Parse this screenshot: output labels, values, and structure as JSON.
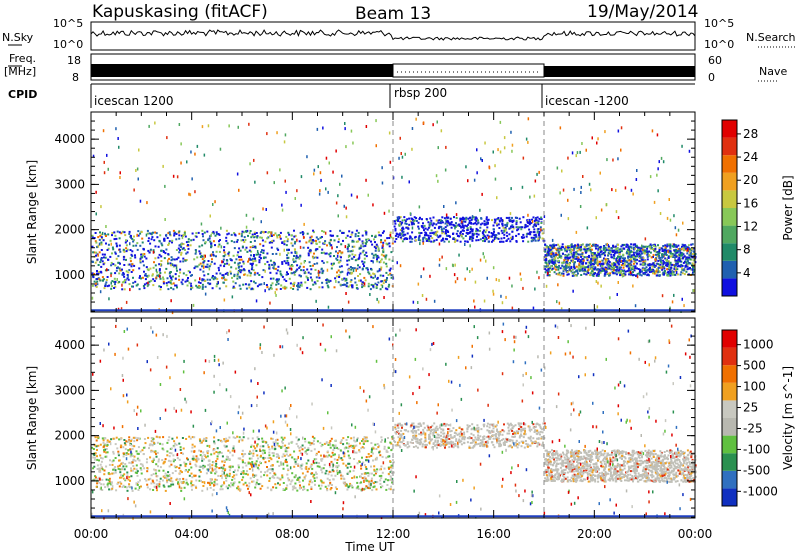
{
  "header": {
    "station": "Kapuskasing (fitACF)",
    "beam": "Beam 13",
    "date": "19/May/2014"
  },
  "strip_labels": {
    "nsky": "N.Sky",
    "freq": "Freq.",
    "freq_unit": "[MHz]",
    "cpid": "CPID",
    "nsearch": "N.Search",
    "nave": "Nave",
    "nsky_ticks": [
      "10^5",
      "10^0"
    ],
    "freq_ticks": [
      "18",
      "8"
    ],
    "nave_ticks": [
      "60",
      "0"
    ]
  },
  "cpid_segments": [
    {
      "name": "icescan 1200",
      "start_h": 0,
      "end_h": 12
    },
    {
      "name": "rbsp 200",
      "start_h": 12,
      "end_h": 18
    },
    {
      "name": "icescan -1200",
      "start_h": 18,
      "end_h": 24
    }
  ],
  "chart_data": [
    {
      "type": "heatmap",
      "panel": "power",
      "ylabel": "Slant Range [km]",
      "xlabel": "Time UT",
      "xlim": [
        0,
        24
      ],
      "ylim": [
        180,
        4600
      ],
      "y_ticks": [
        1000,
        2000,
        3000,
        4000
      ],
      "x_ticks": [
        "00:00",
        "04:00",
        "08:00",
        "12:00",
        "16:00",
        "20:00",
        "00:00"
      ],
      "colorbar": {
        "label": "Power [dB]",
        "ticks": [
          "4",
          "8",
          "12",
          "16",
          "20",
          "24",
          "28"
        ],
        "colors": [
          "#1010e0",
          "#2060b0",
          "#208a68",
          "#50a860",
          "#88c858",
          "#c8c840",
          "#f0a020",
          "#f07000",
          "#e03010",
          "#e00000"
        ]
      },
      "scatter_bands": [
        {
          "start_h": 0,
          "end_h": 12,
          "min_km": 700,
          "max_km": 2000,
          "dominant": "blue-green"
        },
        {
          "start_h": 12,
          "end_h": 18,
          "min_km": 1750,
          "max_km": 2300,
          "dominant": "blue"
        },
        {
          "start_h": 18,
          "end_h": 24,
          "min_km": 1000,
          "max_km": 1700,
          "dominant": "blue-green"
        }
      ]
    },
    {
      "type": "heatmap",
      "panel": "velocity",
      "ylabel": "Slant Range [km]",
      "xlabel": "Time UT",
      "xlim": [
        0,
        24
      ],
      "ylim": [
        180,
        4600
      ],
      "y_ticks": [
        1000,
        2000,
        3000,
        4000
      ],
      "x_ticks": [
        "00:00",
        "04:00",
        "08:00",
        "12:00",
        "16:00",
        "20:00",
        "00:00"
      ],
      "colorbar": {
        "label": "Velocity [m s^-1]",
        "ticks": [
          "1000",
          "500",
          "100",
          "25",
          "-25",
          "-100",
          "-500",
          "-1000"
        ],
        "colors": [
          "#1030c0",
          "#3070c0",
          "#2a9050",
          "#60c040",
          "#b8b8b0",
          "#c8c8c0",
          "#f0a020",
          "#f07000",
          "#e03010",
          "#e00000"
        ]
      },
      "scatter_bands": [
        {
          "start_h": 0,
          "end_h": 12,
          "min_km": 800,
          "max_km": 2000,
          "dominant": "gray-green-orange"
        },
        {
          "start_h": 12,
          "end_h": 18,
          "min_km": 1750,
          "max_km": 2300,
          "dominant": "gray"
        },
        {
          "start_h": 18,
          "end_h": 24,
          "min_km": 1000,
          "max_km": 1700,
          "dominant": "gray"
        }
      ]
    }
  ]
}
